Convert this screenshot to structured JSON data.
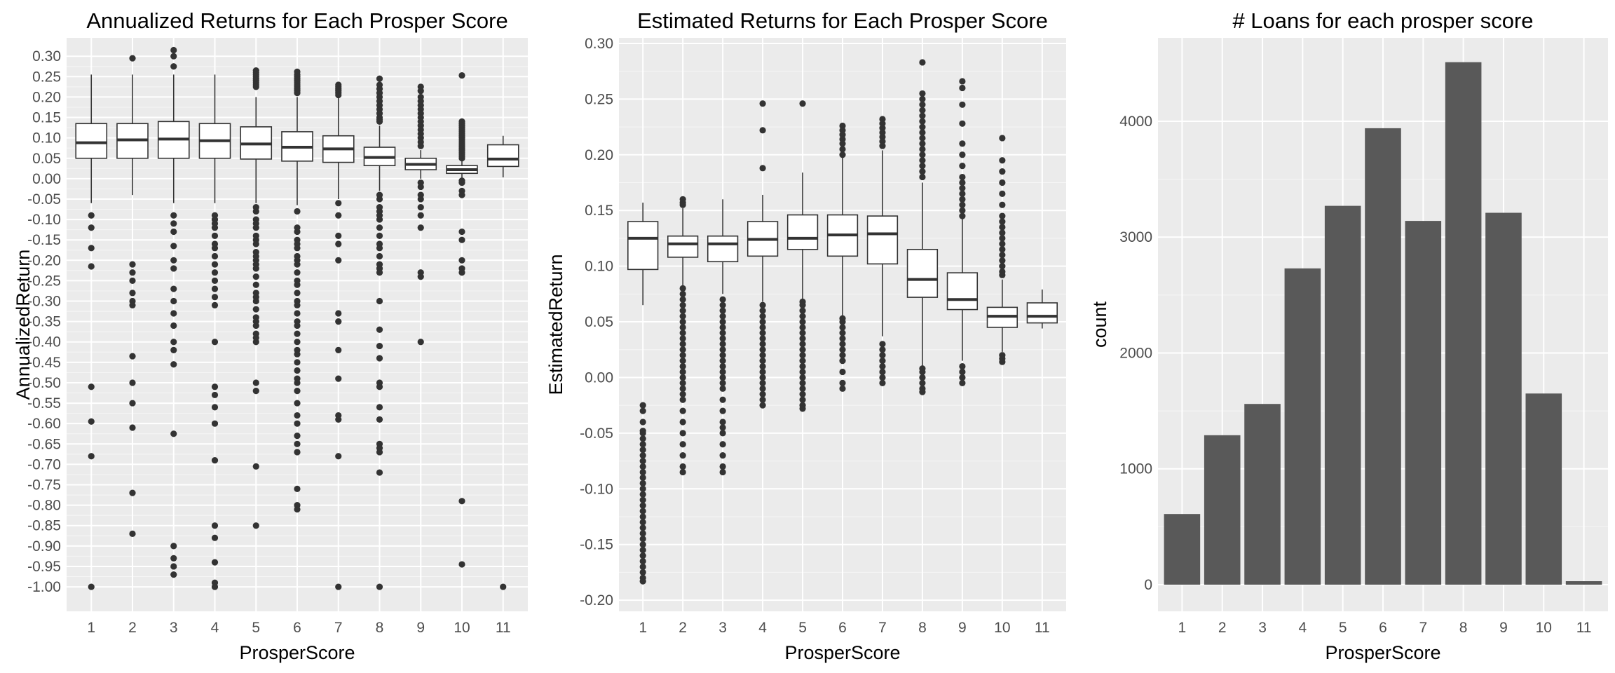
{
  "colors": {
    "panel_bg": "#ebebeb",
    "grid_major": "#ffffff",
    "box_line": "#333333",
    "box_fill": "#ffffff",
    "bar_fill": "#595959",
    "tick_text": "#4d4d4d"
  },
  "chart_data": [
    {
      "type": "boxplot",
      "title": "Annualized Returns for Each Prosper Score",
      "xlabel": "ProsperScore",
      "ylabel": "AnnualizedReturn",
      "categories": [
        "1",
        "2",
        "3",
        "4",
        "5",
        "6",
        "7",
        "8",
        "9",
        "10",
        "11"
      ],
      "yticks": [
        0.3,
        0.25,
        0.2,
        0.15,
        0.1,
        0.05,
        0.0,
        -0.05,
        -0.1,
        -0.15,
        -0.2,
        -0.25,
        -0.3,
        -0.35,
        -0.4,
        -0.45,
        -0.5,
        -0.55,
        -0.6,
        -0.65,
        -0.7,
        -0.75,
        -0.8,
        -0.85,
        -0.9,
        -0.95,
        -1.0
      ],
      "ytick_labels": [
        "0.30",
        "0.25",
        "0.20",
        "0.15",
        "0.10",
        "0.05",
        "0.00",
        "-0.05",
        "-0.10",
        "-0.15",
        "-0.20",
        "-0.25",
        "-0.30",
        "-0.35",
        "-0.40",
        "-0.45",
        "-0.50",
        "-0.55",
        "-0.60",
        "-0.65",
        "-0.70",
        "-0.75",
        "-0.80",
        "-0.85",
        "-0.90",
        "-0.95",
        "-1.00"
      ],
      "ylim": [
        -1.06,
        0.345
      ],
      "boxes": [
        {
          "x": "1",
          "q1": 0.05,
          "median": 0.088,
          "q3": 0.135,
          "whisker_low": -0.06,
          "whisker_high": 0.255,
          "outliers": [
            -0.09,
            -0.12,
            -0.17,
            -0.215,
            -0.51,
            -0.595,
            -0.68,
            -1.0
          ]
        },
        {
          "x": "2",
          "q1": 0.05,
          "median": 0.095,
          "q3": 0.135,
          "whisker_low": -0.04,
          "whisker_high": 0.255,
          "outliers": [
            0.295,
            -0.21,
            -0.23,
            -0.25,
            -0.28,
            -0.3,
            -0.31,
            -0.435,
            -0.5,
            -0.55,
            -0.61,
            -0.77,
            -0.87
          ]
        },
        {
          "x": "3",
          "q1": 0.05,
          "median": 0.097,
          "q3": 0.14,
          "whisker_low": -0.06,
          "whisker_high": 0.255,
          "outliers": [
            0.315,
            0.3,
            0.275,
            -0.09,
            -0.11,
            -0.13,
            -0.165,
            -0.2,
            -0.22,
            -0.27,
            -0.3,
            -0.33,
            -0.36,
            -0.4,
            -0.42,
            -0.455,
            -0.625,
            -0.9,
            -0.93,
            -0.95,
            -0.97
          ]
        },
        {
          "x": "4",
          "q1": 0.05,
          "median": 0.093,
          "q3": 0.135,
          "whisker_low": -0.06,
          "whisker_high": 0.255,
          "outliers": [
            -0.09,
            -0.1,
            -0.11,
            -0.12,
            -0.14,
            -0.16,
            -0.17,
            -0.19,
            -0.21,
            -0.23,
            -0.25,
            -0.27,
            -0.29,
            -0.31,
            -0.4,
            -0.51,
            -0.53,
            -0.56,
            -0.6,
            -0.69,
            -0.85,
            -0.88,
            -0.94,
            -0.99,
            -1.0
          ]
        },
        {
          "x": "5",
          "q1": 0.048,
          "median": 0.085,
          "q3": 0.127,
          "whisker_low": -0.06,
          "whisker_high": 0.2,
          "outliers": [
            0.265,
            0.26,
            0.255,
            0.25,
            0.245,
            0.24,
            0.235,
            0.23,
            0.225,
            -0.07,
            -0.08,
            -0.1,
            -0.11,
            -0.12,
            -0.14,
            -0.15,
            -0.16,
            -0.18,
            -0.19,
            -0.2,
            -0.21,
            -0.22,
            -0.24,
            -0.26,
            -0.28,
            -0.29,
            -0.3,
            -0.32,
            -0.34,
            -0.35,
            -0.36,
            -0.38,
            -0.39,
            -0.4,
            -0.5,
            -0.52,
            -0.705,
            -0.85
          ]
        },
        {
          "x": "6",
          "q1": 0.043,
          "median": 0.077,
          "q3": 0.115,
          "whisker_low": -0.065,
          "whisker_high": 0.2,
          "outliers": [
            0.262,
            0.255,
            0.25,
            0.245,
            0.24,
            0.235,
            0.23,
            0.225,
            0.22,
            0.215,
            0.21,
            -0.08,
            -0.12,
            -0.13,
            -0.15,
            -0.16,
            -0.17,
            -0.19,
            -0.2,
            -0.21,
            -0.23,
            -0.25,
            -0.26,
            -0.28,
            -0.3,
            -0.31,
            -0.33,
            -0.35,
            -0.36,
            -0.38,
            -0.4,
            -0.42,
            -0.43,
            -0.45,
            -0.47,
            -0.49,
            -0.5,
            -0.52,
            -0.55,
            -0.58,
            -0.6,
            -0.63,
            -0.65,
            -0.67,
            -0.76,
            -0.8,
            -0.81
          ]
        },
        {
          "x": "7",
          "q1": 0.04,
          "median": 0.073,
          "q3": 0.105,
          "whisker_low": -0.05,
          "whisker_high": 0.2,
          "outliers": [
            0.23,
            0.225,
            0.22,
            0.215,
            0.21,
            0.205,
            -0.06,
            -0.09,
            -0.14,
            -0.16,
            -0.2,
            -0.33,
            -0.35,
            -0.42,
            -0.49,
            -0.58,
            -0.59,
            -0.68,
            -1.0
          ]
        },
        {
          "x": "8",
          "q1": 0.032,
          "median": 0.052,
          "q3": 0.077,
          "whisker_low": -0.03,
          "whisker_high": 0.13,
          "outliers": [
            0.245,
            0.23,
            0.22,
            0.21,
            0.2,
            0.19,
            0.18,
            0.17,
            0.16,
            0.15,
            0.145,
            0.14,
            -0.04,
            -0.05,
            -0.07,
            -0.08,
            -0.09,
            -0.1,
            -0.12,
            -0.14,
            -0.16,
            -0.17,
            -0.19,
            -0.21,
            -0.22,
            -0.23,
            -0.3,
            -0.37,
            -0.41,
            -0.44,
            -0.5,
            -0.51,
            -0.56,
            -0.59,
            -0.65,
            -0.66,
            -0.67,
            -0.72,
            -1.0
          ]
        },
        {
          "x": "9",
          "q1": 0.022,
          "median": 0.035,
          "q3": 0.05,
          "whisker_low": 0.0,
          "whisker_high": 0.07,
          "outliers": [
            0.225,
            0.215,
            0.2,
            0.19,
            0.18,
            0.17,
            0.16,
            0.15,
            0.14,
            0.13,
            0.12,
            0.11,
            0.1,
            0.09,
            0.08,
            -0.01,
            -0.02,
            -0.04,
            -0.05,
            -0.07,
            -0.09,
            -0.12,
            -0.23,
            -0.24,
            -0.4
          ]
        },
        {
          "x": "10",
          "q1": 0.013,
          "median": 0.022,
          "q3": 0.032,
          "whisker_low": 0.002,
          "whisker_high": 0.045,
          "outliers": [
            0.253,
            0.14,
            0.135,
            0.13,
            0.125,
            0.12,
            0.115,
            0.11,
            0.105,
            0.1,
            0.095,
            0.09,
            0.085,
            0.08,
            0.075,
            0.07,
            0.065,
            0.06,
            0.055,
            0.05,
            -0.005,
            -0.01,
            -0.03,
            -0.04,
            -0.13,
            -0.15,
            -0.2,
            -0.22,
            -0.23,
            -0.79,
            -0.945
          ]
        },
        {
          "x": "11",
          "q1": 0.03,
          "median": 0.048,
          "q3": 0.083,
          "whisker_low": 0.003,
          "whisker_high": 0.105,
          "outliers": [
            -1.0
          ]
        }
      ]
    },
    {
      "type": "boxplot",
      "title": "Estimated Returns for Each Prosper Score",
      "xlabel": "ProsperScore",
      "ylabel": "EstimatedReturn",
      "categories": [
        "1",
        "2",
        "3",
        "4",
        "5",
        "6",
        "7",
        "8",
        "9",
        "10",
        "11"
      ],
      "yticks": [
        0.3,
        0.25,
        0.2,
        0.15,
        0.1,
        0.05,
        0.0,
        -0.05,
        -0.1,
        -0.15,
        -0.2
      ],
      "ytick_labels": [
        "0.30",
        "0.25",
        "0.20",
        "0.15",
        "0.10",
        "0.05",
        "0.00",
        "-0.05",
        "-0.10",
        "-0.15",
        "-0.20"
      ],
      "ylim": [
        -0.21,
        0.305
      ],
      "boxes": [
        {
          "x": "1",
          "q1": 0.097,
          "median": 0.125,
          "q3": 0.14,
          "whisker_low": 0.065,
          "whisker_high": 0.157,
          "outliers": [
            -0.025,
            -0.03,
            -0.04,
            -0.048,
            -0.05,
            -0.055,
            -0.06,
            -0.065,
            -0.07,
            -0.075,
            -0.08,
            -0.085,
            -0.09,
            -0.095,
            -0.1,
            -0.105,
            -0.11,
            -0.115,
            -0.12,
            -0.125,
            -0.13,
            -0.135,
            -0.14,
            -0.145,
            -0.15,
            -0.155,
            -0.16,
            -0.165,
            -0.17,
            -0.175,
            -0.18,
            -0.183
          ]
        },
        {
          "x": "2",
          "q1": 0.108,
          "median": 0.12,
          "q3": 0.127,
          "whisker_low": 0.082,
          "whisker_high": 0.152,
          "outliers": [
            0.16,
            0.157,
            0.155,
            0.08,
            0.075,
            0.07,
            0.065,
            0.06,
            0.055,
            0.05,
            0.045,
            0.04,
            0.035,
            0.03,
            0.025,
            0.02,
            0.015,
            0.01,
            0.005,
            0.0,
            -0.005,
            -0.01,
            -0.015,
            -0.02,
            -0.03,
            -0.04,
            -0.05,
            -0.06,
            -0.07,
            -0.08,
            -0.085
          ]
        },
        {
          "x": "3",
          "q1": 0.104,
          "median": 0.12,
          "q3": 0.127,
          "whisker_low": 0.075,
          "whisker_high": 0.16,
          "outliers": [
            0.07,
            0.065,
            0.06,
            0.055,
            0.05,
            0.045,
            0.04,
            0.035,
            0.03,
            0.025,
            0.02,
            0.015,
            0.01,
            0.005,
            0.0,
            -0.005,
            -0.01,
            -0.02,
            -0.03,
            -0.04,
            -0.045,
            -0.05,
            -0.06,
            -0.07,
            -0.08,
            -0.085
          ]
        },
        {
          "x": "4",
          "q1": 0.109,
          "median": 0.124,
          "q3": 0.14,
          "whisker_low": 0.068,
          "whisker_high": 0.164,
          "outliers": [
            0.246,
            0.222,
            0.188,
            0.065,
            0.06,
            0.055,
            0.05,
            0.045,
            0.04,
            0.035,
            0.03,
            0.025,
            0.02,
            0.015,
            0.01,
            0.005,
            0.0,
            -0.005,
            -0.01,
            -0.015,
            -0.02,
            -0.025
          ]
        },
        {
          "x": "5",
          "q1": 0.115,
          "median": 0.125,
          "q3": 0.146,
          "whisker_low": 0.07,
          "whisker_high": 0.184,
          "outliers": [
            0.246,
            0.068,
            0.065,
            0.06,
            0.055,
            0.05,
            0.045,
            0.04,
            0.035,
            0.03,
            0.025,
            0.02,
            0.015,
            0.01,
            0.005,
            0.0,
            -0.005,
            -0.01,
            -0.015,
            -0.02,
            -0.025,
            -0.028
          ]
        },
        {
          "x": "6",
          "q1": 0.109,
          "median": 0.128,
          "q3": 0.146,
          "whisker_low": 0.055,
          "whisker_high": 0.198,
          "outliers": [
            0.226,
            0.222,
            0.218,
            0.214,
            0.21,
            0.205,
            0.2,
            0.053,
            0.05,
            0.045,
            0.04,
            0.035,
            0.03,
            0.025,
            0.02,
            0.015,
            0.005,
            -0.005,
            -0.01
          ]
        },
        {
          "x": "7",
          "q1": 0.102,
          "median": 0.129,
          "q3": 0.145,
          "whisker_low": 0.037,
          "whisker_high": 0.204,
          "outliers": [
            0.232,
            0.228,
            0.224,
            0.22,
            0.216,
            0.212,
            0.208,
            0.03,
            0.025,
            0.02,
            0.015,
            0.01,
            0.005,
            0.0,
            -0.005
          ]
        },
        {
          "x": "8",
          "q1": 0.072,
          "median": 0.088,
          "q3": 0.115,
          "whisker_low": 0.01,
          "whisker_high": 0.175,
          "outliers": [
            0.283,
            0.255,
            0.25,
            0.245,
            0.24,
            0.235,
            0.23,
            0.225,
            0.22,
            0.215,
            0.21,
            0.205,
            0.2,
            0.195,
            0.19,
            0.185,
            0.18,
            0.008,
            0.005,
            0.0,
            -0.005,
            -0.01,
            -0.013
          ]
        },
        {
          "x": "9",
          "q1": 0.061,
          "median": 0.07,
          "q3": 0.094,
          "whisker_low": 0.015,
          "whisker_high": 0.143,
          "outliers": [
            0.266,
            0.26,
            0.245,
            0.228,
            0.21,
            0.2,
            0.19,
            0.18,
            0.175,
            0.17,
            0.165,
            0.16,
            0.155,
            0.15,
            0.145,
            0.01,
            0.005,
            0.0,
            -0.005
          ]
        },
        {
          "x": "10",
          "q1": 0.045,
          "median": 0.055,
          "q3": 0.063,
          "whisker_low": 0.023,
          "whisker_high": 0.088,
          "outliers": [
            0.215,
            0.195,
            0.185,
            0.175,
            0.165,
            0.155,
            0.145,
            0.14,
            0.135,
            0.13,
            0.125,
            0.12,
            0.115,
            0.11,
            0.105,
            0.1,
            0.095,
            0.092,
            0.02,
            0.017,
            0.014
          ]
        },
        {
          "x": "11",
          "q1": 0.049,
          "median": 0.055,
          "q3": 0.067,
          "whisker_low": 0.044,
          "whisker_high": 0.079,
          "outliers": []
        }
      ]
    },
    {
      "type": "bar",
      "title": "# Loans for each prosper score",
      "xlabel": "ProsperScore",
      "ylabel": "count",
      "categories": [
        "1",
        "2",
        "3",
        "4",
        "5",
        "6",
        "7",
        "8",
        "9",
        "10",
        "11"
      ],
      "values": [
        610,
        1290,
        1560,
        2730,
        3270,
        3940,
        3140,
        4510,
        3210,
        1650,
        30
      ],
      "yticks": [
        0,
        1000,
        2000,
        3000,
        4000
      ],
      "ytick_labels": [
        "0",
        "1000",
        "2000",
        "3000",
        "4000"
      ],
      "ylim": [
        -230,
        4720
      ]
    }
  ]
}
